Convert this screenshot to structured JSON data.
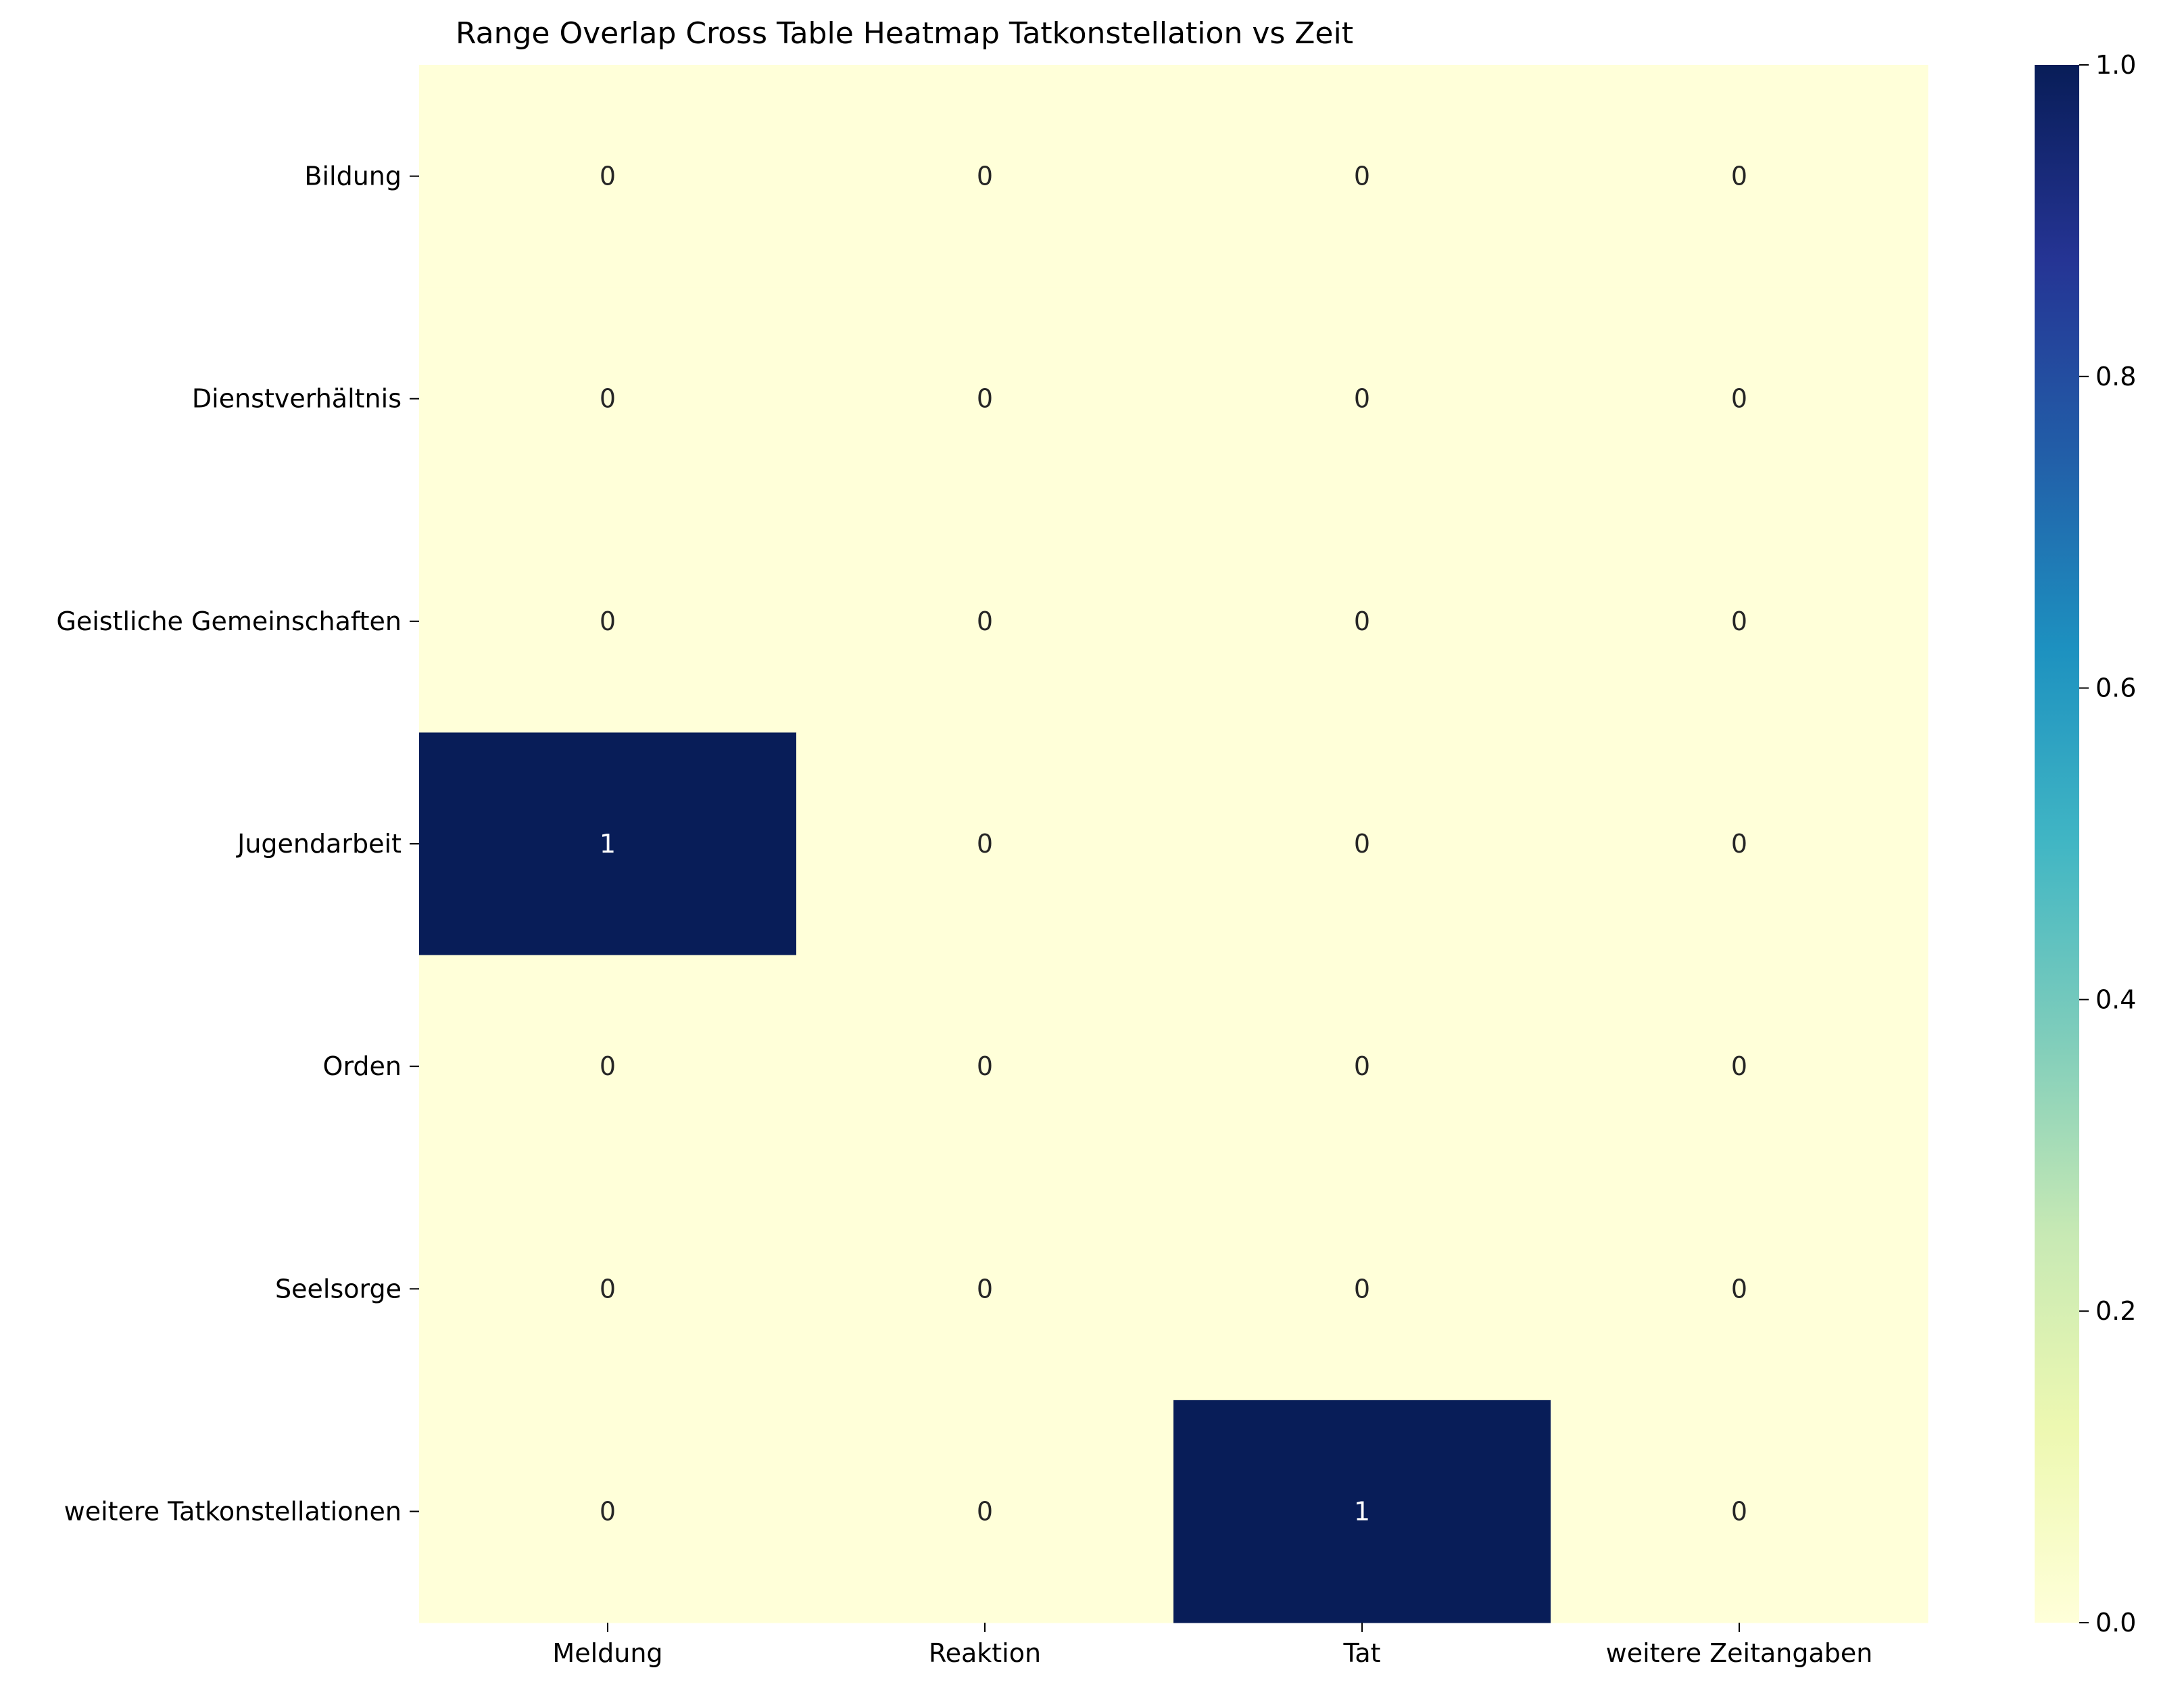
{
  "chart_data": {
    "type": "heatmap",
    "title": "Range Overlap Cross Table Heatmap Tatkonstellation vs Zeit",
    "xlabel": "",
    "ylabel": "",
    "x_categories": [
      "Meldung",
      "Reaktion",
      "Tat",
      "weitere Zeitangaben"
    ],
    "y_categories": [
      "Bildung",
      "Dienstverhältnis",
      "Geistliche Gemeinschaften",
      "Jugendarbeit",
      "Orden",
      "Seelsorge",
      "weitere Tatkonstellationen"
    ],
    "values": [
      [
        0,
        0,
        0,
        0
      ],
      [
        0,
        0,
        0,
        0
      ],
      [
        0,
        0,
        0,
        0
      ],
      [
        1,
        0,
        0,
        0
      ],
      [
        0,
        0,
        0,
        0
      ],
      [
        0,
        0,
        0,
        0
      ],
      [
        0,
        0,
        1,
        0
      ]
    ],
    "annotations": true,
    "colormap": "YlGnBu",
    "colormap_stops": [
      "#ffffd9",
      "#edf8b1",
      "#c7e9b4",
      "#7fcdbb",
      "#41b6c4",
      "#1d91c0",
      "#225ea8",
      "#253494",
      "#081d58"
    ],
    "colorbar": {
      "range": [
        0,
        1
      ],
      "ticks": [
        "0.0",
        "0.2",
        "0.4",
        "0.6",
        "0.8",
        "1.0"
      ]
    },
    "grid": false,
    "legend": "colorbar-right"
  }
}
